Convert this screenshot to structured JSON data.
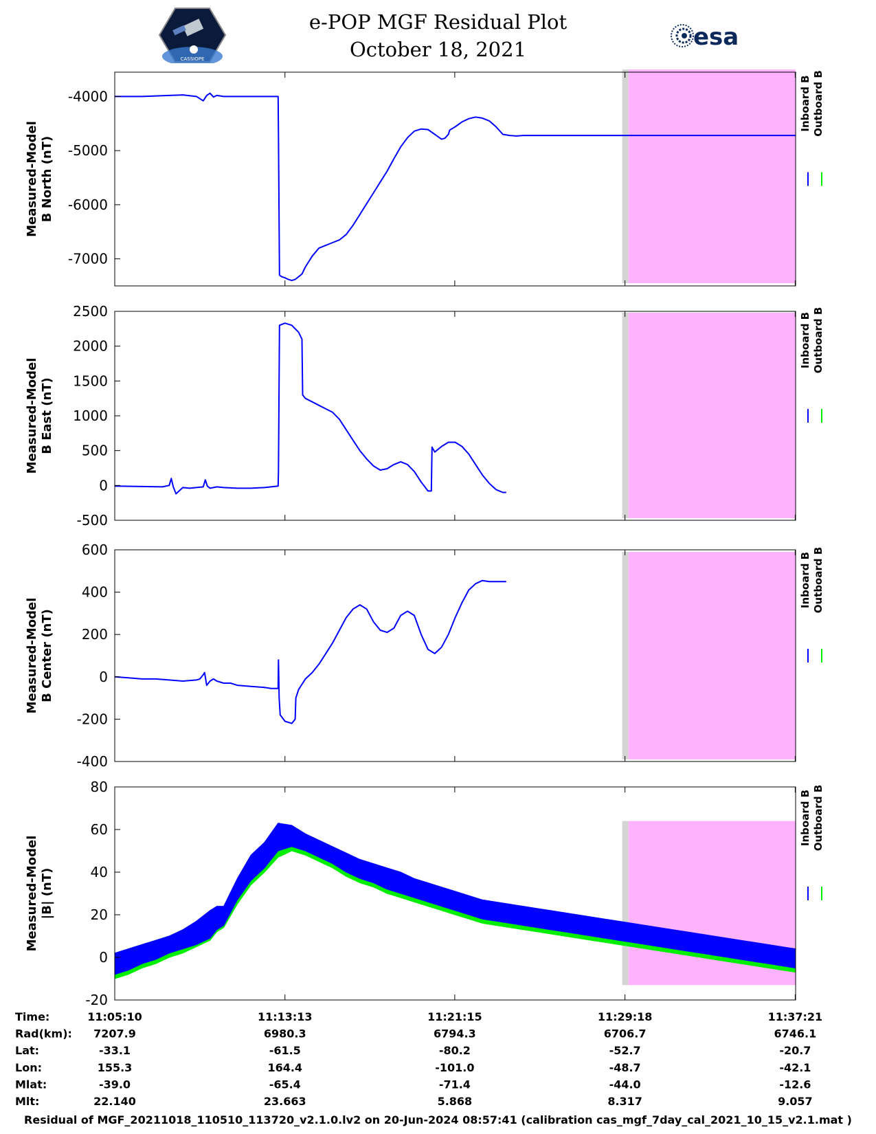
{
  "header": {
    "title": "e-POP MGF Residual Plot",
    "date": "October 18, 2021",
    "left_logo_text": "CASSIOPE",
    "right_logo_text": "esa"
  },
  "legend": {
    "inboard": "Inboard B",
    "outboard": "Outboard B",
    "inboard_color": "#0000ff",
    "outboard_color": "#00ee00"
  },
  "colors": {
    "shade": "#ffb3ff",
    "gray": "#d4d4d4"
  },
  "chart_data": [
    {
      "type": "line",
      "name": "north",
      "ylabel_line1": "Measured-Model",
      "ylabel_line2": "B North (nT)",
      "ylim": [
        -7500,
        -3550
      ],
      "yticks": [
        -7000,
        -6000,
        -5000,
        -4000
      ],
      "ytick_labels": [
        "-7000",
        "-6000",
        "-5000",
        "-4000"
      ],
      "gray_start_min": 24.0,
      "shade_start_min": 24.3,
      "shade_range": [
        -7450,
        -3500
      ],
      "series": [
        {
          "name": "Inboard B",
          "color": "#0000ff",
          "x": [
            0,
            2,
            4,
            6,
            8,
            10,
            12,
            13,
            13.5,
            14,
            14.5,
            15,
            16,
            18,
            20,
            22,
            24,
            24.05,
            24.2,
            24.5,
            25,
            25.5,
            26,
            26.5,
            27,
            27.5,
            28,
            29,
            30,
            31,
            32,
            33,
            34,
            35,
            36,
            36.5,
            37,
            38,
            39,
            40,
            41,
            42,
            43,
            44,
            45,
            46,
            47,
            48,
            48.5,
            49,
            49.2,
            50,
            51,
            52,
            53,
            54,
            55,
            56,
            57,
            58,
            59,
            60,
            61,
            62,
            63,
            64,
            65,
            66,
            67,
            68,
            68.5,
            69,
            69.5,
            70,
            70.5,
            71,
            72,
            73,
            74,
            75,
            76,
            77,
            78,
            79,
            80,
            81,
            82,
            83,
            84,
            85,
            86,
            87,
            88,
            89,
            90,
            91,
            92,
            93,
            94,
            95,
            96,
            97,
            98,
            99,
            100
          ],
          "y": [
            -4000,
            -4000,
            -4000,
            -3990,
            -3980,
            -3970,
            -4000,
            -4080,
            -3980,
            -3940,
            -4010,
            -3980,
            -4000,
            -4000,
            -4000,
            -4000,
            -4000,
            -4700,
            -7300,
            -7330,
            -7350,
            -7380,
            -7400,
            -7380,
            -7330,
            -7280,
            -7150,
            -6950,
            -6800,
            -6750,
            -6700,
            -6650,
            -6550,
            -6380,
            -6180,
            -6080,
            -5980,
            -5780,
            -5580,
            -5380,
            -5150,
            -4930,
            -4760,
            -4640,
            -4600,
            -4610,
            -4700,
            -4790,
            -4770,
            -4700,
            -4620,
            -4560,
            -4470,
            -4410,
            -4380,
            -4400,
            -4450,
            -4560,
            -4700,
            -4720,
            -4730,
            -4720,
            -4720,
            -4720,
            -4720,
            -4720,
            -4720,
            -4720,
            -4720,
            -4720,
            -4720,
            -4720,
            -4720,
            -4720,
            -4720,
            -4720,
            -4720,
            -4720,
            -4720,
            -4720,
            -4720,
            -4720,
            -4720,
            -4720,
            -4720,
            -4720,
            -4720,
            -4720,
            -4720,
            -4720,
            -4720,
            -4720,
            -4720,
            -4720,
            -4720,
            -4720,
            -4720,
            -4720,
            -4720,
            -4720,
            -4720,
            -4720,
            -4720,
            -4720,
            -4720
          ]
        }
      ]
    },
    {
      "type": "line",
      "name": "east",
      "ylabel_line1": "Measured-Model",
      "ylabel_line2": "B East (nT)",
      "ylim": [
        -500,
        2500
      ],
      "yticks": [
        -500,
        0,
        500,
        1000,
        1500,
        2000,
        2500
      ],
      "ytick_labels": [
        "-500",
        "0",
        "500",
        "1000",
        "1500",
        "2000",
        "2500"
      ],
      "gray_start_min": 24.0,
      "shade_start_min": 24.3,
      "shade_range": [
        -470,
        2480
      ],
      "series": [
        {
          "name": "Inboard B",
          "color": "#0000ff",
          "x": [
            0,
            4,
            7,
            8,
            8.3,
            8.6,
            9,
            10,
            11,
            12,
            13,
            13.3,
            13.6,
            14,
            15,
            16,
            18,
            20,
            22,
            24,
            24.05,
            24.2,
            25,
            26,
            27,
            27.5,
            27.6,
            28,
            29,
            30,
            31,
            32,
            33,
            34,
            35,
            36,
            37,
            38,
            39,
            40,
            41,
            42,
            43,
            44,
            45,
            46,
            46.5,
            46.6,
            47,
            48,
            49,
            50,
            51,
            52,
            53,
            54,
            55,
            56,
            57,
            57.5
          ],
          "y": [
            -10,
            -15,
            -20,
            0,
            100,
            -20,
            -120,
            -30,
            -40,
            -30,
            -20,
            80,
            -10,
            -40,
            -20,
            -30,
            -40,
            -40,
            -30,
            -10,
            200,
            2300,
            2330,
            2300,
            2200,
            2100,
            1300,
            1250,
            1200,
            1150,
            1100,
            1050,
            950,
            800,
            650,
            500,
            380,
            280,
            220,
            240,
            300,
            340,
            300,
            200,
            50,
            -80,
            -80,
            550,
            480,
            560,
            620,
            620,
            560,
            450,
            300,
            150,
            30,
            -60,
            -100,
            -100
          ]
        }
      ]
    },
    {
      "type": "line",
      "name": "center",
      "ylabel_line1": "Measured-Model",
      "ylabel_line2": "B Center (nT)",
      "ylim": [
        -400,
        600
      ],
      "yticks": [
        -400,
        -200,
        0,
        200,
        400,
        600
      ],
      "ytick_labels": [
        "-400",
        "-200",
        "0",
        "200",
        "400",
        "600"
      ],
      "gray_start_min": 24.0,
      "shade_start_min": 24.3,
      "shade_range": [
        -390,
        590
      ],
      "series": [
        {
          "name": "Inboard B",
          "color": "#0000ff",
          "x": [
            0,
            2,
            4,
            6,
            8,
            10,
            12,
            12.5,
            13,
            13.2,
            13.5,
            14,
            14.5,
            15,
            16,
            17,
            18,
            20,
            22,
            23,
            24,
            24.05,
            24.15,
            24.3,
            25,
            26,
            26.5,
            26.6,
            27,
            28,
            29,
            30,
            31,
            32,
            33,
            34,
            35,
            36,
            37,
            38,
            39,
            40,
            41,
            42,
            43,
            44,
            45,
            46,
            47,
            48,
            49,
            50,
            51,
            52,
            53,
            54,
            55,
            56,
            57,
            57.5
          ],
          "y": [
            0,
            -5,
            -10,
            -10,
            -15,
            -20,
            -15,
            -10,
            10,
            20,
            -40,
            -20,
            -10,
            -20,
            -30,
            -30,
            -40,
            -45,
            -50,
            -55,
            -55,
            80,
            -100,
            -180,
            -210,
            -220,
            -200,
            -100,
            -60,
            -10,
            20,
            60,
            110,
            160,
            220,
            280,
            320,
            340,
            320,
            260,
            220,
            210,
            230,
            290,
            310,
            290,
            200,
            130,
            110,
            140,
            200,
            280,
            350,
            410,
            440,
            455,
            450,
            450,
            450,
            450
          ]
        }
      ]
    },
    {
      "type": "area",
      "name": "total",
      "ylabel_line1": "Measured-Model",
      "ylabel_line2": "|B| (nT)",
      "ylim": [
        -20,
        80
      ],
      "yticks": [
        -20,
        0,
        20,
        40,
        60,
        80
      ],
      "ytick_labels": [
        "-20",
        "0",
        "20",
        "40",
        "60",
        "80"
      ],
      "gray_start_min": 24.0,
      "shade_start_min": 24.3,
      "shade_range": [
        -13,
        64
      ],
      "series": [
        {
          "name": "Outboard B",
          "color": "#00ee00",
          "x": [
            0,
            2,
            4,
            6,
            8,
            10,
            12,
            14,
            15,
            16,
            18,
            20,
            22,
            24,
            26,
            28,
            30,
            32,
            34,
            36,
            38,
            40,
            42,
            44,
            46,
            48,
            50,
            52,
            54,
            56,
            58,
            60,
            62,
            64,
            66,
            68,
            70,
            72,
            74,
            76,
            78,
            80,
            82,
            84,
            86,
            88,
            90,
            92,
            94,
            96,
            98,
            100
          ],
          "low": [
            -10,
            -8,
            -5,
            -3,
            0,
            2,
            5,
            8,
            12,
            14,
            25,
            34,
            40,
            47,
            50,
            48,
            45,
            42,
            38,
            35,
            33,
            30,
            28,
            26,
            24,
            22,
            20,
            18,
            16,
            15,
            14,
            13,
            12,
            11,
            10,
            9,
            8,
            7,
            6,
            5,
            4,
            3,
            2,
            1,
            0,
            -1,
            -2,
            -3,
            -4,
            -5,
            -6,
            -7
          ],
          "high": [
            2,
            4,
            6,
            8,
            10,
            13,
            15,
            17,
            21,
            23,
            33,
            42,
            48,
            54,
            57,
            55,
            52,
            49,
            46,
            43,
            41,
            38,
            36,
            34,
            32,
            30,
            28,
            26,
            24,
            22,
            21,
            20,
            19,
            18,
            17,
            16,
            15,
            14,
            13,
            12,
            11,
            10,
            9,
            8,
            7,
            6,
            5,
            4,
            3,
            2,
            1,
            0
          ]
        },
        {
          "name": "Inboard B",
          "color": "#0000ff",
          "x": [
            0,
            2,
            4,
            6,
            8,
            10,
            12,
            14,
            15,
            16,
            18,
            20,
            22,
            24,
            26,
            28,
            30,
            32,
            34,
            36,
            38,
            40,
            42,
            44,
            46,
            48,
            50,
            52,
            54,
            56,
            58,
            60,
            62,
            64,
            66,
            68,
            70,
            72,
            74,
            76,
            78,
            80,
            82,
            84,
            86,
            88,
            90,
            92,
            94,
            96,
            98,
            100
          ],
          "low": [
            -8,
            -6,
            -3,
            -1,
            2,
            4,
            6,
            9,
            13,
            15,
            27,
            36,
            42,
            50,
            52,
            50,
            47,
            44,
            40,
            37,
            35,
            32,
            30,
            28,
            26,
            24,
            22,
            20,
            18,
            17,
            16,
            15,
            14,
            13,
            12,
            11,
            10,
            9,
            8,
            7,
            6,
            5,
            4,
            3,
            2,
            1,
            0,
            -1,
            -2,
            -3,
            -4,
            -5
          ],
          "high": [
            2,
            4,
            6,
            8,
            10,
            13,
            17,
            22,
            24,
            24,
            37,
            48,
            54,
            63,
            62,
            58,
            55,
            52,
            49,
            46,
            44,
            42,
            40,
            37,
            35,
            33,
            31,
            29,
            27,
            26,
            25,
            24,
            23,
            22,
            21,
            20,
            19,
            18,
            17,
            16,
            15,
            14,
            13,
            12,
            11,
            10,
            9,
            8,
            7,
            6,
            5,
            4
          ]
        }
      ]
    }
  ],
  "x_axis": {
    "min_range": [
      0,
      32.2
    ],
    "tick_minutes": [
      0,
      8.05,
      16.08,
      24.13,
      32.18
    ],
    "row_labels": [
      "Time:",
      "Rad(km):",
      "Lat:",
      "Lon:",
      "Mlat:",
      "Mlt:"
    ],
    "columns": [
      [
        "11:05:10",
        "7207.9",
        "-33.1",
        "155.3",
        "-39.0",
        "22.140"
      ],
      [
        "11:13:13",
        "6980.3",
        "-61.5",
        "164.4",
        "-65.4",
        "23.663"
      ],
      [
        "11:21:15",
        "6794.3",
        "-80.2",
        "-101.0",
        "-71.4",
        "5.868"
      ],
      [
        "11:29:18",
        "6706.7",
        "-52.7",
        "-48.7",
        "-44.0",
        "8.317"
      ],
      [
        "11:37:21",
        "6746.1",
        "-20.7",
        "-42.1",
        "-12.6",
        "9.057"
      ]
    ]
  },
  "footer": "Residual of MGF_20211018_110510_113720_v2.1.0.lv2 on 20-Jun-2024 08:57:41 (calibration cas_mgf_7day_cal_2021_10_15_v2.1.mat )"
}
